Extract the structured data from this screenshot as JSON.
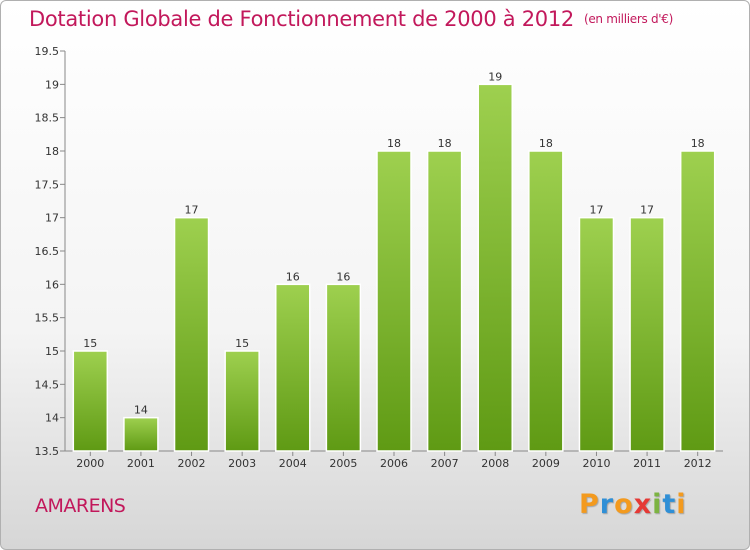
{
  "chart_data": {
    "type": "bar",
    "title": "Dotation Globale de Fonctionnement de 2000 à 2012",
    "subtitle": "(en milliers d'€)",
    "categories": [
      "2000",
      "2001",
      "2002",
      "2003",
      "2004",
      "2005",
      "2006",
      "2007",
      "2008",
      "2009",
      "2010",
      "2011",
      "2012"
    ],
    "values": [
      15,
      14,
      17,
      15,
      16,
      16,
      18,
      18,
      19,
      18,
      17,
      17,
      18
    ],
    "data_labels": [
      "15",
      "14",
      "17",
      "15",
      "16",
      "16",
      "18",
      "18",
      "19",
      "18",
      "17",
      "17",
      "18"
    ],
    "xlabel": "",
    "ylabel": "",
    "ylim": [
      13.5,
      19.5
    ],
    "yticks": [
      "13.5",
      "14",
      "14.5",
      "15",
      "15.5",
      "16",
      "16.5",
      "17",
      "17.5",
      "18",
      "18.5",
      "19",
      "19.5"
    ],
    "grid": false,
    "bar_color": "#7cbd2a"
  },
  "footer": {
    "commune": "AMARENS",
    "logo": [
      "P",
      "r",
      "o",
      "x",
      "i",
      "t",
      "i"
    ],
    "logo_colors": [
      "#f39a1e",
      "#2f8fd6",
      "#f39a1e",
      "#e53935",
      "#7cb342",
      "#2f8fd6",
      "#f39a1e"
    ]
  }
}
